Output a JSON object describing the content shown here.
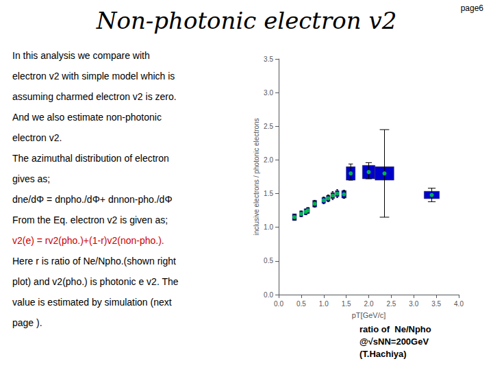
{
  "chart_data": {
    "type": "scatter",
    "title": "Non-photonic electron v2",
    "page": "page6",
    "annotations": [
      {
        "text": "In this analysis we compare with"
      },
      {
        "text": "electron v2 with simple model which is"
      },
      {
        "text": "assuming charmed electron v2 is zero."
      },
      {
        "text": "And we also estimate non-photonic"
      },
      {
        "text": "electron v2."
      },
      {
        "text": "The azimuthal distribution of electron"
      },
      {
        "text": "gives as;"
      },
      {
        "text": "dne/dΦ = dnpho./dΦ+ dnnon-pho./dΦ"
      },
      {
        "text": "From the Eq. electron v2 is given as;"
      },
      {
        "text": "v2(e) = rv2(pho.)+(1-r)v2(non-pho.).",
        "color": "#cc0000"
      },
      {
        "text": "Here r is ratio of Ne/Npho.(shown right"
      },
      {
        "text": "plot) and v2(pho.) is photonic e v2. The"
      },
      {
        "text": "value is estimated by simulation (next"
      },
      {
        "text": "page )."
      }
    ],
    "caption": [
      "ratio of  Ne/Npho",
      "@√sNN=200GeV",
      "(T.Hachiya)"
    ],
    "background_color": "#ffffff",
    "x": [
      0.35,
      0.5,
      0.6,
      0.65,
      0.8,
      1.0,
      1.1,
      1.2,
      1.3,
      1.45,
      1.6,
      2.0,
      2.35,
      3.4
    ],
    "values": [
      1.15,
      1.2,
      1.23,
      1.25,
      1.35,
      1.4,
      1.43,
      1.47,
      1.5,
      1.49,
      1.8,
      1.82,
      1.8,
      1.48
    ],
    "yerr_up": [
      0.04,
      0.04,
      0.04,
      0.04,
      0.05,
      0.05,
      0.05,
      0.06,
      0.06,
      0.06,
      0.14,
      0.14,
      0.65,
      0.1
    ],
    "yerr_dn": [
      0.04,
      0.04,
      0.04,
      0.04,
      0.05,
      0.05,
      0.05,
      0.06,
      0.06,
      0.06,
      0.1,
      0.1,
      0.65,
      0.1
    ],
    "box_w": [
      0.09,
      0.07,
      0.07,
      0.07,
      0.09,
      0.08,
      0.08,
      0.08,
      0.08,
      0.1,
      0.2,
      0.28,
      0.42,
      0.34
    ],
    "box_h": [
      0.1,
      0.09,
      0.09,
      0.09,
      0.1,
      0.09,
      0.09,
      0.09,
      0.09,
      0.11,
      0.2,
      0.2,
      0.2,
      0.11
    ],
    "box_color": "#0000cc",
    "color": "#00dd44",
    "xlabel": "pT[GeV/c]",
    "ylabel": "inclusive electrons / photonic electrons",
    "xlim": [
      0,
      4
    ],
    "ylim": [
      0,
      3.5
    ],
    "xticks": [
      {
        "value": 0,
        "label": "0.0"
      },
      0.5,
      {
        "value": 1.0,
        "label": "1.0"
      },
      1.5,
      {
        "value": 2.0,
        "label": "2.0"
      },
      2.5,
      {
        "value": 3.0,
        "label": "3.0"
      },
      3.5,
      {
        "value": 4.0,
        "label": "4.0"
      }
    ],
    "yticks": [
      {
        "value": 0,
        "label": "0.0"
      },
      0.5,
      {
        "value": 1.0,
        "label": "1.0"
      },
      1.5,
      {
        "value": 2.0,
        "label": "2.0"
      },
      2.5,
      {
        "value": 3.0,
        "label": "3.0"
      },
      3.5
    ],
    "grid": false
  }
}
